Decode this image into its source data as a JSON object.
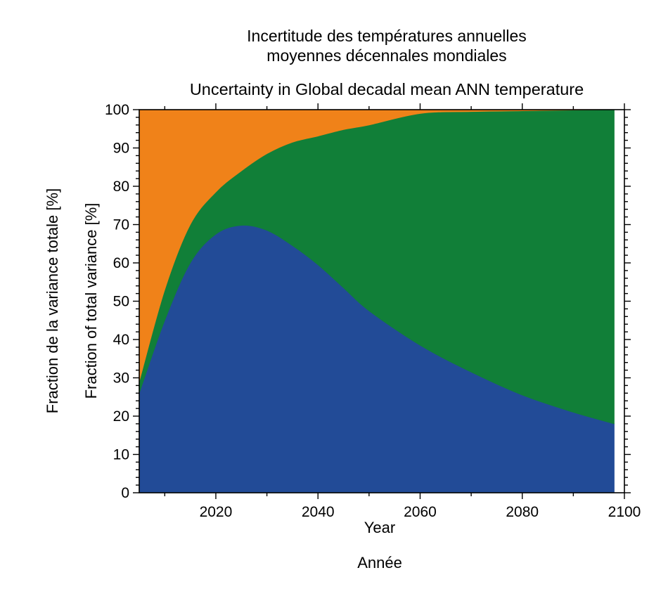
{
  "titles": {
    "line1": "Incertitude des températures annuelles",
    "line2": "moyennes décennales mondiales",
    "line3": "Uncertainty in Global decadal mean ANN temperature"
  },
  "axes": {
    "ylabel_fr": "Fraction de la variance totale [%]",
    "ylabel_en": "Fraction of total variance  [%]",
    "xlabel_en": "Year",
    "xlabel_fr": "Année"
  },
  "chart_data": {
    "type": "area",
    "stacked": true,
    "x": [
      2005,
      2010,
      2015,
      2020,
      2025,
      2030,
      2035,
      2040,
      2045,
      2050,
      2060,
      2070,
      2080,
      2090,
      2098
    ],
    "series": [
      {
        "color": "#224b97",
        "values": [
          26,
          45,
          60,
          67.5,
          69.8,
          68.5,
          64.5,
          59.5,
          53.5,
          47.5,
          38.5,
          31.5,
          25.5,
          21,
          18
        ]
      },
      {
        "color": "#117f38",
        "values": [
          3,
          8,
          10,
          11,
          14.2,
          20,
          27,
          33.6,
          41.3,
          48.5,
          60.5,
          68,
          74.2,
          78.9,
          82
        ]
      },
      {
        "color": "#f08219",
        "values": [
          71,
          47,
          30,
          21.5,
          16,
          11.5,
          8.5,
          6.9,
          5.2,
          4,
          1,
          0.5,
          0.3,
          0.1,
          0
        ]
      }
    ],
    "xlim": [
      2005,
      2100
    ],
    "ylim": [
      0,
      100
    ],
    "xticks": [
      2020,
      2040,
      2060,
      2080,
      2100
    ],
    "yticks": [
      0,
      10,
      20,
      30,
      40,
      50,
      60,
      70,
      80,
      90,
      100
    ],
    "grid": false,
    "legend": "none"
  }
}
